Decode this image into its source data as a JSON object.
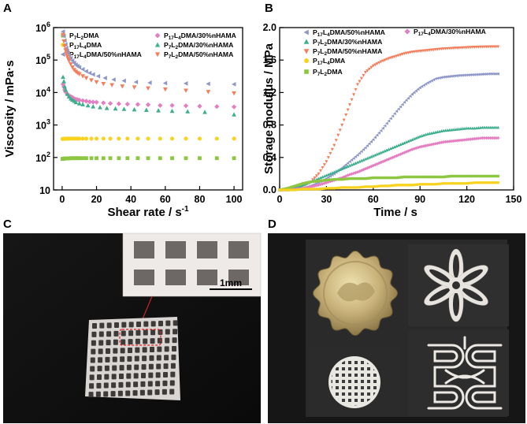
{
  "figure": {
    "panels": {
      "A": {
        "label": "A"
      },
      "B": {
        "label": "B"
      },
      "C": {
        "label": "C",
        "scale_bar": "1mm"
      },
      "D": {
        "label": "D"
      }
    }
  },
  "chart_data": [
    {
      "id": "A",
      "type": "scatter",
      "yscale": "log",
      "xlabel": "Shear rate / s",
      "xlabel_sup": "-1",
      "ylabel": "Viscosity / mPa·s",
      "xlim": [
        -5,
        105
      ],
      "ylim": [
        10,
        1000000
      ],
      "xticks": [
        "0",
        "20",
        "40",
        "60",
        "80",
        "100"
      ],
      "yticks": [
        {
          "base": "10",
          "exp": ""
        },
        {
          "base": "10",
          "exp": "2"
        },
        {
          "base": "10",
          "exp": "3"
        },
        {
          "base": "10",
          "exp": "4"
        },
        {
          "base": "10",
          "exp": "5"
        },
        {
          "base": "10",
          "exp": "6"
        }
      ],
      "legend": [
        {
          "prefix": "P",
          "s1": "7",
          "mid": "L",
          "s2": "2",
          "suffix": "DMA",
          "color": "#8dc640",
          "marker": "square"
        },
        {
          "prefix": "P",
          "s1": "17",
          "mid": "L",
          "s2": "4",
          "suffix": "DMA",
          "color": "#f7d21f",
          "marker": "circle"
        },
        {
          "prefix": "P",
          "s1": "17",
          "mid": "L",
          "s2": "4",
          "suffix": "DMA/50%nHAMA",
          "color": "#8c96c8",
          "marker": "triangle-left"
        },
        {
          "prefix": "P",
          "s1": "17",
          "mid": "L",
          "s2": "4",
          "suffix": "DMA/30%nHAMA",
          "color": "#e57ec0",
          "marker": "diamond"
        },
        {
          "prefix": "P",
          "s1": "7",
          "mid": "L",
          "s2": "2",
          "suffix": "DMA/30%nHAMA",
          "color": "#3dae8e",
          "marker": "triangle-up"
        },
        {
          "prefix": "P",
          "s1": "7",
          "mid": "L",
          "s2": "2",
          "suffix": "DMA/50%nHAMA",
          "color": "#f47e5c",
          "marker": "triangle-down"
        }
      ],
      "series": [
        {
          "name": "P7L2DMA",
          "color": "#8dc640",
          "marker": "square",
          "x": [
            0.2,
            0.5,
            1,
            1.5,
            2,
            2.5,
            3,
            3.5,
            4,
            5,
            6,
            7,
            8,
            9,
            10,
            12,
            14,
            17,
            20,
            24,
            28,
            33,
            38,
            44,
            50,
            57,
            64,
            72,
            80,
            90,
            100
          ],
          "y": [
            90,
            91,
            92,
            93,
            93,
            93,
            94,
            94,
            94,
            95,
            95,
            95,
            95,
            95,
            95,
            95,
            95,
            95,
            95,
            95,
            95,
            95,
            95,
            95,
            95,
            95,
            95,
            95,
            95,
            95,
            95
          ]
        },
        {
          "name": "P17L4DMA",
          "color": "#f7d21f",
          "marker": "circle",
          "x": [
            0.2,
            0.5,
            1,
            1.5,
            2,
            2.5,
            3,
            3.5,
            4,
            5,
            6,
            7,
            8,
            9,
            10,
            12,
            14,
            17,
            20,
            24,
            28,
            33,
            38,
            44,
            50,
            57,
            64,
            72,
            80,
            90,
            100
          ],
          "y": [
            370,
            372,
            375,
            376,
            378,
            378,
            379,
            380,
            380,
            380,
            380,
            380,
            380,
            380,
            380,
            380,
            380,
            380,
            380,
            380,
            380,
            380,
            380,
            380,
            380,
            380,
            380,
            380,
            380,
            380,
            380
          ]
        },
        {
          "name": "P17L4DMA/30%nHAMA",
          "color": "#e57ec0",
          "marker": "diamond",
          "x": [
            0.5,
            1,
            1.5,
            2,
            3,
            4,
            5,
            6,
            7,
            8,
            9,
            10,
            12,
            14,
            16,
            18,
            20,
            24,
            28,
            33,
            38,
            44,
            50,
            57,
            64,
            72,
            80,
            90,
            100
          ],
          "y": [
            18000,
            15000,
            12000,
            10500,
            9000,
            8000,
            7500,
            7000,
            6500,
            6200,
            6000,
            5800,
            5600,
            5400,
            5200,
            5100,
            5000,
            4800,
            4600,
            4500,
            4400,
            4300,
            4200,
            4000,
            4000,
            3900,
            3800,
            3700,
            3600
          ]
        },
        {
          "name": "P7L2DMA/30%nHAMA",
          "color": "#3dae8e",
          "marker": "triangle-up",
          "x": [
            0.5,
            1,
            1.5,
            2,
            3,
            4,
            5,
            6,
            7,
            8,
            10,
            12,
            15,
            18,
            22,
            26,
            31,
            36,
            42,
            49,
            56,
            64,
            73,
            83,
            100
          ],
          "y": [
            30000,
            22000,
            15000,
            12000,
            9000,
            7500,
            6500,
            6000,
            5500,
            5000,
            4600,
            4300,
            4000,
            3700,
            3500,
            3300,
            3200,
            3100,
            3000,
            2900,
            2800,
            2700,
            2600,
            2500,
            2100
          ]
        },
        {
          "name": "P17L4DMA/50%nHAMA",
          "color": "#8c96c8",
          "marker": "triangle-left",
          "x": [
            0.5,
            1,
            1.5,
            2,
            2.5,
            3,
            3.5,
            4,
            5,
            6,
            7,
            8,
            9,
            10,
            12,
            14,
            16,
            18,
            21,
            25,
            30,
            36,
            43,
            51,
            60,
            72,
            85,
            100
          ],
          "y": [
            750000,
            550000,
            400000,
            300000,
            230000,
            190000,
            160000,
            140000,
            115000,
            95000,
            82000,
            72000,
            65000,
            60000,
            52000,
            45000,
            40000,
            36000,
            32000,
            28000,
            25000,
            23000,
            21000,
            20000,
            19500,
            19000,
            18500,
            18000
          ]
        },
        {
          "name": "P7L2DMA/50%nHAMA",
          "color": "#f47e5c",
          "marker": "triangle-down",
          "x": [
            0.5,
            1,
            1.5,
            2,
            2.5,
            3,
            3.5,
            4,
            5,
            6,
            7,
            8,
            9,
            10,
            12,
            14,
            17,
            20,
            24,
            29,
            35,
            42,
            50,
            60,
            72,
            85,
            100
          ],
          "y": [
            600000,
            380000,
            270000,
            200000,
            160000,
            130000,
            110000,
            95000,
            75000,
            60000,
            50000,
            44000,
            40000,
            37000,
            32000,
            28000,
            24000,
            21000,
            18500,
            17000,
            15500,
            14500,
            13500,
            12500,
            11500,
            10500,
            9500
          ]
        }
      ]
    },
    {
      "id": "B",
      "type": "scatter",
      "xlabel": "Time / s",
      "ylabel": "Storage modulus / MPa",
      "xlim": [
        0,
        150
      ],
      "ylim": [
        0,
        2.0
      ],
      "xticks": [
        "0",
        "30",
        "60",
        "90",
        "120",
        "150"
      ],
      "yticks": [
        "0.0",
        "0.4",
        "0.8",
        "1.2",
        "1.6",
        "2.0"
      ],
      "legend_left": [
        {
          "prefix": "P",
          "s1": "17",
          "mid": "L",
          "s2": "4",
          "suffix": "DMA/50%nHAMA",
          "color": "#8c96c8",
          "marker": "triangle-left"
        },
        {
          "prefix": "P",
          "s1": "7",
          "mid": "L",
          "s2": "2",
          "suffix": "DMA/30%nHAMA",
          "color": "#3dae8e",
          "marker": "triangle-up"
        },
        {
          "prefix": "P",
          "s1": "7",
          "mid": "L",
          "s2": "2",
          "suffix": "DMA/50%nHAMA",
          "color": "#f47e5c",
          "marker": "triangle-down"
        },
        {
          "prefix": "P",
          "s1": "17",
          "mid": "L",
          "s2": "4",
          "suffix": "DMA",
          "color": "#f7d21f",
          "marker": "circle"
        },
        {
          "prefix": "P",
          "s1": "7",
          "mid": "L",
          "s2": "2",
          "suffix": "DMA",
          "color": "#8dc640",
          "marker": "square"
        }
      ],
      "legend_right": [
        {
          "prefix": "P",
          "s1": "17",
          "mid": "L",
          "s2": "4",
          "suffix": "DMA/30%nHAMA",
          "color": "#e57ec0",
          "marker": "diamond"
        }
      ],
      "series": [
        {
          "name": "P7L2DMA/50%nHAMA",
          "color": "#f47e5c",
          "marker": "triangle-down",
          "x": [
            0,
            5,
            10,
            15,
            20,
            25,
            30,
            35,
            40,
            45,
            50,
            55,
            60,
            65,
            70,
            75,
            80,
            85,
            90,
            95,
            100,
            105,
            110,
            115,
            120,
            125,
            130,
            135,
            140
          ],
          "y": [
            0,
            0.01,
            0.02,
            0.05,
            0.1,
            0.2,
            0.35,
            0.55,
            0.8,
            1.05,
            1.3,
            1.45,
            1.53,
            1.58,
            1.62,
            1.65,
            1.68,
            1.7,
            1.71,
            1.72,
            1.73,
            1.74,
            1.745,
            1.75,
            1.755,
            1.76,
            1.762,
            1.765,
            1.765
          ]
        },
        {
          "name": "P17L4DMA/50%nHAMA",
          "color": "#8c96c8",
          "marker": "triangle-left",
          "x": [
            0,
            5,
            10,
            15,
            20,
            25,
            30,
            35,
            40,
            45,
            50,
            55,
            60,
            65,
            70,
            75,
            80,
            85,
            90,
            95,
            100,
            105,
            110,
            115,
            120,
            125,
            130,
            135,
            140
          ],
          "y": [
            0,
            0.0,
            0.01,
            0.02,
            0.05,
            0.09,
            0.14,
            0.2,
            0.27,
            0.35,
            0.43,
            0.52,
            0.62,
            0.73,
            0.85,
            0.97,
            1.08,
            1.18,
            1.26,
            1.32,
            1.37,
            1.39,
            1.4,
            1.41,
            1.415,
            1.42,
            1.425,
            1.43,
            1.43
          ]
        },
        {
          "name": "P7L2DMA/30%nHAMA",
          "color": "#3dae8e",
          "marker": "triangle-up",
          "x": [
            0,
            5,
            10,
            15,
            20,
            25,
            30,
            35,
            40,
            45,
            50,
            55,
            60,
            65,
            70,
            75,
            80,
            85,
            90,
            95,
            100,
            105,
            110,
            115,
            120,
            125,
            130,
            135,
            140
          ],
          "y": [
            0,
            0.01,
            0.03,
            0.06,
            0.1,
            0.14,
            0.18,
            0.22,
            0.26,
            0.3,
            0.34,
            0.38,
            0.42,
            0.46,
            0.5,
            0.54,
            0.58,
            0.62,
            0.66,
            0.69,
            0.71,
            0.73,
            0.74,
            0.75,
            0.76,
            0.76,
            0.77,
            0.77,
            0.77
          ]
        },
        {
          "name": "P17L4DMA/30%nHAMA",
          "color": "#e57ec0",
          "marker": "diamond",
          "x": [
            0,
            5,
            10,
            15,
            20,
            25,
            30,
            35,
            40,
            45,
            50,
            55,
            60,
            65,
            70,
            75,
            80,
            85,
            90,
            95,
            100,
            105,
            110,
            115,
            120,
            125,
            130,
            135,
            140
          ],
          "y": [
            0,
            0.0,
            0.01,
            0.02,
            0.04,
            0.06,
            0.09,
            0.12,
            0.15,
            0.19,
            0.22,
            0.26,
            0.3,
            0.34,
            0.38,
            0.42,
            0.46,
            0.5,
            0.53,
            0.55,
            0.57,
            0.59,
            0.6,
            0.61,
            0.62,
            0.63,
            0.64,
            0.64,
            0.64
          ]
        },
        {
          "name": "P7L2DMA",
          "color": "#8dc640",
          "marker": "square",
          "x": [
            0,
            5,
            10,
            15,
            20,
            25,
            30,
            35,
            40,
            45,
            50,
            55,
            60,
            65,
            70,
            75,
            80,
            85,
            90,
            95,
            100,
            105,
            110,
            115,
            120,
            125,
            130,
            135,
            140
          ],
          "y": [
            0,
            0.02,
            0.05,
            0.08,
            0.1,
            0.11,
            0.12,
            0.13,
            0.13,
            0.14,
            0.14,
            0.14,
            0.15,
            0.15,
            0.15,
            0.15,
            0.16,
            0.16,
            0.16,
            0.16,
            0.16,
            0.16,
            0.17,
            0.17,
            0.17,
            0.17,
            0.17,
            0.17,
            0.17
          ]
        },
        {
          "name": "P17L4DMA",
          "color": "#f7d21f",
          "marker": "circle",
          "x": [
            0,
            5,
            10,
            15,
            20,
            25,
            30,
            35,
            40,
            45,
            50,
            55,
            60,
            65,
            70,
            75,
            80,
            85,
            90,
            95,
            100,
            105,
            110,
            115,
            120,
            125,
            130,
            135,
            140
          ],
          "y": [
            0,
            0.0,
            0.0,
            0.01,
            0.01,
            0.01,
            0.02,
            0.02,
            0.03,
            0.03,
            0.03,
            0.04,
            0.04,
            0.05,
            0.05,
            0.06,
            0.06,
            0.06,
            0.07,
            0.07,
            0.07,
            0.08,
            0.08,
            0.08,
            0.08,
            0.09,
            0.09,
            0.09,
            0.09
          ]
        }
      ]
    }
  ]
}
